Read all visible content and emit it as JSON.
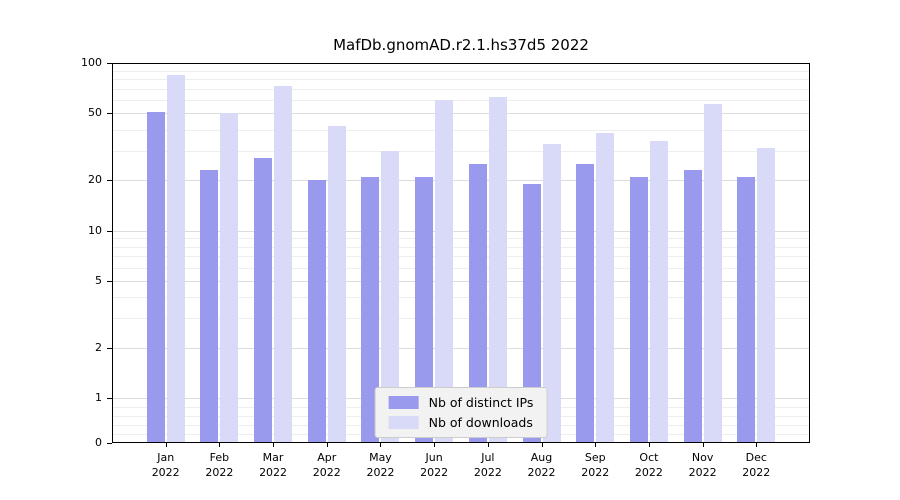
{
  "chart_data": {
    "type": "bar",
    "title": "MafDb.gnomAD.r2.1.hs37d5 2022",
    "categories": [
      "Jan\n2022",
      "Feb\n2022",
      "Mar\n2022",
      "Apr\n2022",
      "May\n2022",
      "Jun\n2022",
      "Jul\n2022",
      "Aug\n2022",
      "Sep\n2022",
      "Oct\n2022",
      "Nov\n2022",
      "Dec\n2022"
    ],
    "series": [
      {
        "name": "Nb of distinct IPs",
        "color": "#9999ee",
        "values": [
          51,
          23,
          27,
          20,
          21,
          21,
          25,
          19,
          25,
          21,
          23,
          21
        ]
      },
      {
        "name": "Nb of downloads",
        "color": "#d9d9f8",
        "values": [
          85,
          50,
          73,
          42,
          30,
          60,
          63,
          33,
          38,
          34,
          57,
          31
        ]
      }
    ],
    "yscale": "symlog",
    "yticks": [
      0,
      1,
      2,
      5,
      10,
      20,
      50,
      100
    ],
    "ylim": [
      0,
      100
    ],
    "xlabel": "",
    "ylabel": "",
    "grid": true,
    "legend_position": "lower center"
  },
  "style": {
    "grid_major_color": "#dcdcdc",
    "grid_minor_color": "#eeeeee",
    "spine_color": "#000000",
    "legend_background": "#f2f2f2",
    "legend_border": "#cccccc"
  }
}
